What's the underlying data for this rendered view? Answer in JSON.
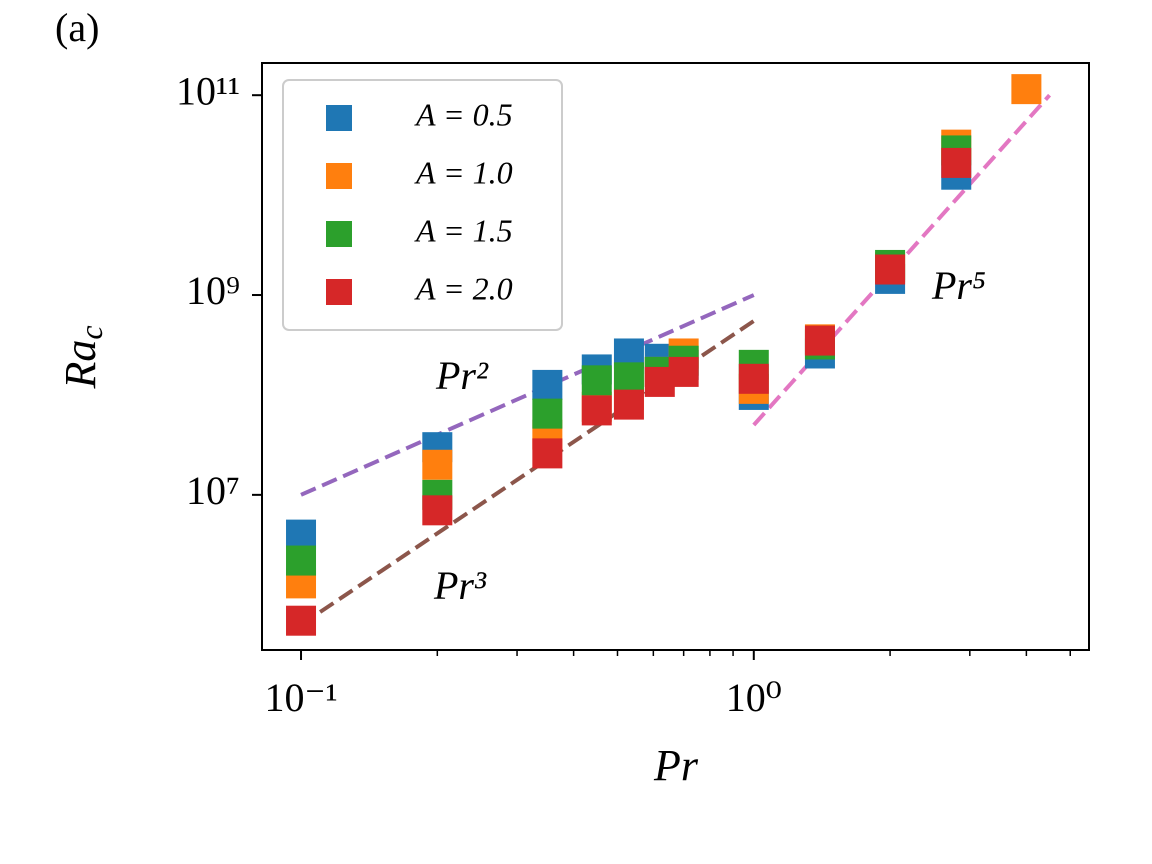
{
  "chart_data": {
    "type": "scatter",
    "panel_label": "(a)",
    "x_label": "Pr",
    "y_label": {
      "base": "Ra",
      "subscript": "c"
    },
    "log_x": true,
    "log_y": true,
    "xlim": [
      0.082,
      5.5
    ],
    "ylim": [
      280000,
      210000000000
    ],
    "xticks": [
      {
        "value": 0.1,
        "label": "10⁻¹"
      },
      {
        "value": 1,
        "label": "10⁰"
      }
    ],
    "xminorticks": [
      0.2,
      0.3,
      0.4,
      0.5,
      0.6,
      0.7,
      0.8,
      0.9,
      2,
      3,
      4,
      5
    ],
    "yticks": [
      {
        "value": 10000000,
        "label": "10⁷"
      },
      {
        "value": 1000000000,
        "label": "10⁹"
      },
      {
        "value": 100000000000,
        "label": "10¹¹"
      }
    ],
    "legend": "upper left",
    "series": [
      {
        "name": "A = 0.5",
        "color": "#1f77b4",
        "x": [
          0.1,
          0.2,
          0.35,
          0.45,
          0.53,
          0.62,
          0.7,
          1.0,
          1.4,
          2.0,
          2.8
        ],
        "values": [
          4000000,
          30000000,
          126000000,
          180000000,
          260000000,
          230000000,
          200000000,
          100000000,
          260000000,
          1450000000,
          16000000000
        ]
      },
      {
        "name": "A = 1.0",
        "color": "#ff7f0e",
        "x": [
          0.1,
          0.2,
          0.35,
          0.45,
          0.53,
          0.62,
          0.7,
          1.0,
          1.4,
          2.0,
          2.8,
          4.0
        ],
        "values": [
          1300000,
          20000000,
          40000000,
          76000000,
          100000000,
          170000000,
          260000000,
          115000000,
          360000000,
          1900000000,
          32000000000,
          115000000000
        ]
      },
      {
        "name": "A = 1.5",
        "color": "#2ca02c",
        "x": [
          0.1,
          0.2,
          0.35,
          0.45,
          0.53,
          0.62,
          0.7,
          1.0,
          1.4,
          2.0,
          2.8
        ],
        "values": [
          2200000,
          10000000,
          65000000,
          140000000,
          150000000,
          170000000,
          220000000,
          200000000,
          320000000,
          2000000000,
          28000000000
        ]
      },
      {
        "name": "A = 2.0",
        "color": "#d62728",
        "x": [
          0.1,
          0.2,
          0.35,
          0.45,
          0.53,
          0.62,
          0.7,
          1.0,
          1.4,
          2.0,
          2.8
        ],
        "values": [
          550000,
          7000000,
          26000000,
          70000000,
          80000000,
          135000000,
          170000000,
          145000000,
          350000000,
          1800000000,
          21000000000
        ]
      }
    ],
    "fit_lines": [
      {
        "label": "Pr²",
        "color": "#9467bd",
        "x": [
          0.1,
          1.0
        ],
        "values": [
          10000000,
          1000000000
        ]
      },
      {
        "label": "Pr³",
        "color": "#8c564b",
        "x": [
          0.1,
          1.0
        ],
        "values": [
          500000,
          550000000
        ]
      },
      {
        "label": "Pr⁵",
        "color": "#e377c2",
        "x": [
          1.0,
          4.5
        ],
        "values": [
          50000000,
          100000000000
        ]
      }
    ]
  }
}
